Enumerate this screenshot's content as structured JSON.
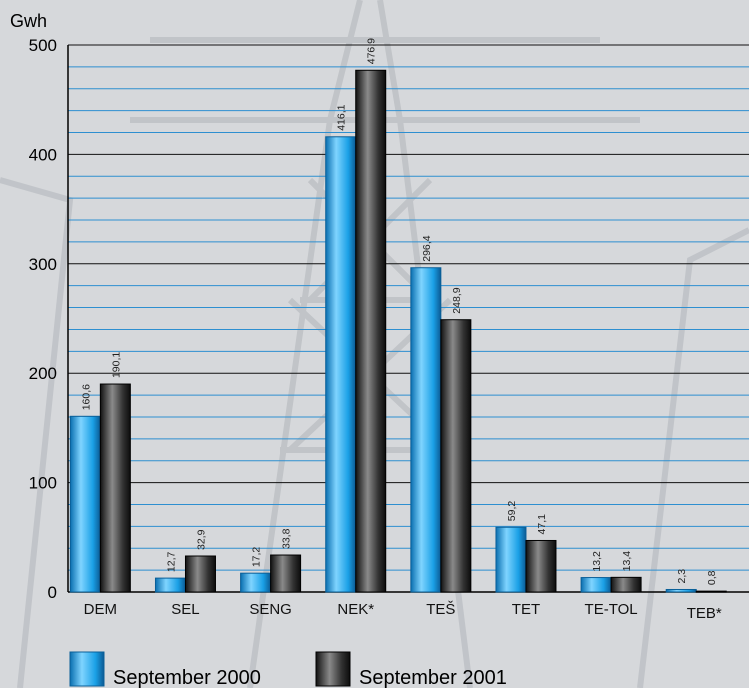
{
  "chart_data": {
    "type": "bar",
    "ylabel": "Gwh",
    "ylim": [
      0,
      500
    ],
    "yticks": [
      0,
      100,
      200,
      300,
      400,
      500
    ],
    "grid": true,
    "legend_position": "bottom",
    "categories": [
      "DEM",
      "SEL",
      "SENG",
      "NEK*",
      "TEŠ",
      "TET",
      "TE-TOL",
      "TEB*"
    ],
    "series": [
      {
        "name": "September 2000",
        "values": [
          160.6,
          12.7,
          17.2,
          416.1,
          296.4,
          59.2,
          13.2,
          2.3
        ],
        "labels": [
          "160,6",
          "12,7",
          "17,2",
          "416,1",
          "296,4",
          "59,2",
          "13,2",
          "2,3"
        ],
        "color": "#1e9fe0"
      },
      {
        "name": "September 2001",
        "values": [
          190.1,
          32.9,
          33.8,
          476.9,
          248.9,
          47.1,
          13.4,
          0.8
        ],
        "labels": [
          "190,1",
          "32,9",
          "33,8",
          "476,9",
          "248,9",
          "47,1",
          "13,4",
          "0,8"
        ],
        "color": "#2a2a2a"
      }
    ]
  }
}
